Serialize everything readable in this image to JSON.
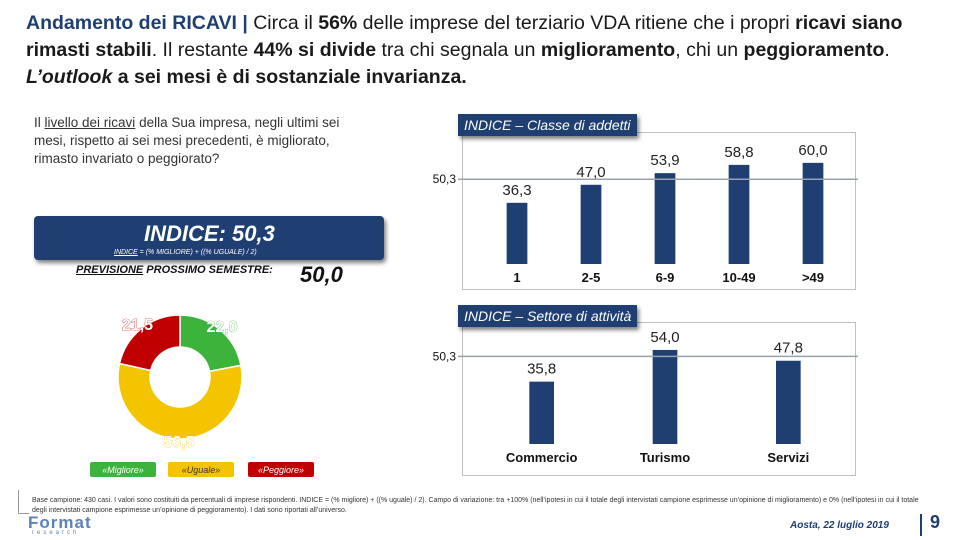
{
  "headline": {
    "p1": "Andamento dei RICAVI | ",
    "p2": "Circa il ",
    "p3": "56%",
    "p4": " delle imprese del terziario VDA ritiene che i propri ",
    "p5": "ricavi siano rimasti stabili",
    "p6": ". Il restante ",
    "p7": "44% si divide",
    "p8": " tra chi segnala un ",
    "p9": "miglioramento",
    "p10": ", chi un ",
    "p11": "peggioramento",
    "p12": ". ",
    "p13": "L’outlook",
    "p14": " a sei mesi è di sostanziale invarianza."
  },
  "question": {
    "q1": "Il ",
    "q2": "livello dei ricavi",
    "q3": " della Sua impresa, negli ultimi sei mesi, rispetto ai sei mesi precedenti, è migliorato, rimasto invariato o peggiorato?"
  },
  "index_box": {
    "label": "INDICE: 50,3",
    "formula_1": "INDICE",
    "formula_2": " = (% MIGLIORE) + ((% UGUALE) / 2)"
  },
  "forecast": {
    "label_1": "PREVISIONE",
    "label_2": " PROSSIMO SEMESTRE:",
    "value": "50,0"
  },
  "chart_data": [
    {
      "type": "pie",
      "labels": [
        "«Migliore»",
        "«Uguale»",
        "«Peggiore»"
      ],
      "values": [
        22.0,
        56.5,
        21.5
      ],
      "value_labels": [
        "22,0",
        "56,5",
        "21,5"
      ],
      "colors": [
        "#ffc000",
        "#ffc000",
        "#c00000"
      ],
      "slice_colors": [
        "#3cb43c",
        "#f5c400",
        "#c00000"
      ],
      "legend_position": "bottom"
    },
    {
      "type": "bar",
      "title": "INDICE – Classe di addetti",
      "categories": [
        "1",
        "2-5",
        "6-9",
        "10-49",
        ">49"
      ],
      "values": [
        36.3,
        47.0,
        53.9,
        58.8,
        60.0
      ],
      "value_labels": [
        "36,3",
        "47,0",
        "53,9",
        "58,8",
        "60,0"
      ],
      "reference_line": 50.3,
      "reference_label": "50,3",
      "ylim": [
        0,
        70
      ],
      "bar_color": "#1f3f73"
    },
    {
      "type": "bar",
      "title": "INDICE – Settore di attività",
      "categories": [
        "Commercio",
        "Turismo",
        "Servizi"
      ],
      "values": [
        35.8,
        54.0,
        47.8
      ],
      "value_labels": [
        "35,8",
        "54,0",
        "47,8"
      ],
      "reference_line": 50.3,
      "reference_label": "50,3",
      "ylim": [
        0,
        62
      ],
      "bar_color": "#1f3f73"
    }
  ],
  "footer": {
    "note": "Base campione: 430 casi. I valori sono costituiti da percentuali di imprese rispondenti. INDICE = (% migliore) + ((% uguale) / 2). Campo di variazione: tra +100% (nell’ipotesi in cui il totale degli intervistati campione esprimesse un’opinione di miglioramento) e 0% (nell’ipotesi in cui il totale degli intervistati campione esprimesse un’opinione di peggioramento). I dati sono riportati all’universo.",
    "logo": "Format",
    "logo_sub": "research",
    "place_date": "Aosta, 22 luglio 2019",
    "page_number": "9"
  }
}
